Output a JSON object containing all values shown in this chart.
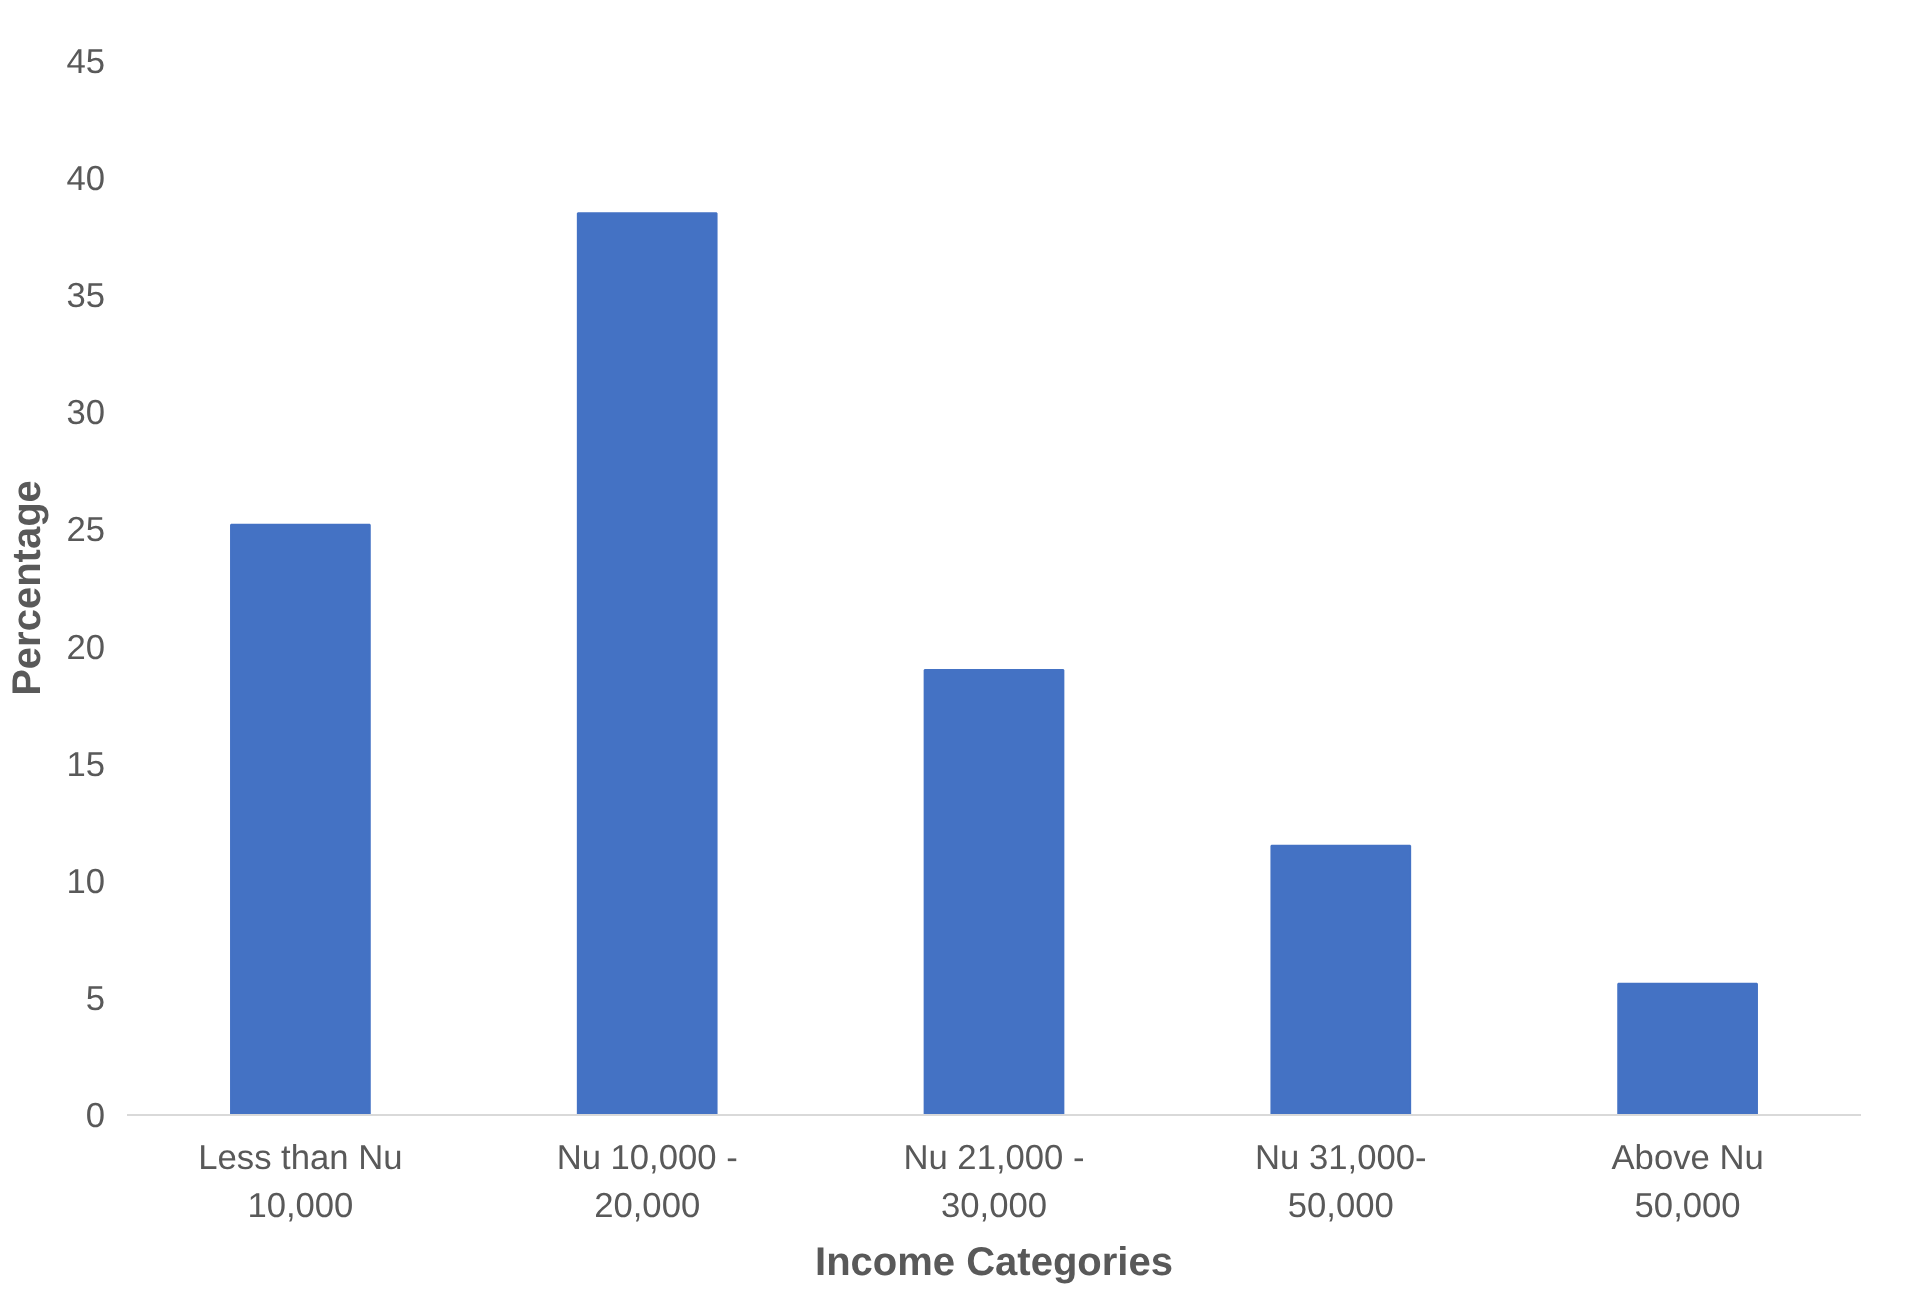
{
  "chart_data": {
    "type": "bar",
    "xlabel": "Income Categories",
    "ylabel": "Percentage",
    "categories": [
      "Less than Nu 10,000",
      "Nu 10,000 - 20,000",
      "Nu 21,000 - 30,000",
      "Nu 31,000-50,000",
      "Above Nu 50,000"
    ],
    "values": [
      25.2,
      38.5,
      19.0,
      11.5,
      5.6
    ],
    "color": "#4472c4",
    "ylim": [
      0,
      45
    ],
    "yticks": [
      0,
      5,
      10,
      15,
      20,
      25,
      30,
      35,
      40,
      45
    ],
    "grid": false
  }
}
